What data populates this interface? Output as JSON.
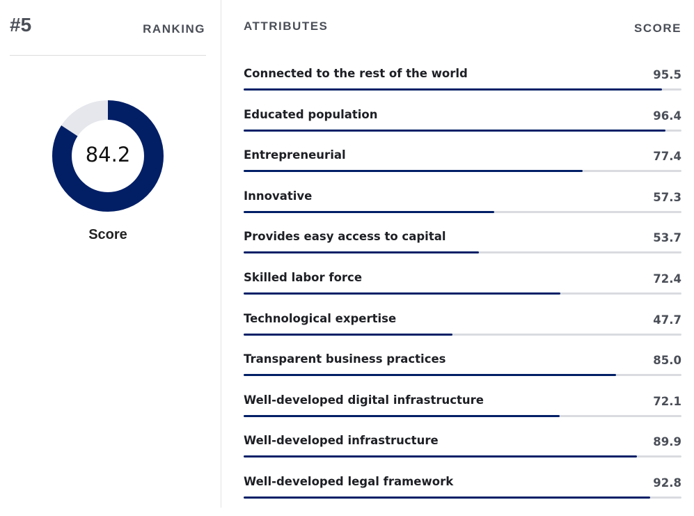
{
  "ranking": {
    "rank": "#5",
    "label": "RANKING"
  },
  "overall": {
    "score": 84.2,
    "score_text": "84.2",
    "label": "Score"
  },
  "colors": {
    "accent": "#021f66",
    "track": "#e5e7ec"
  },
  "attributes_header": "ATTRIBUTES",
  "score_header": "SCORE",
  "attributes": [
    {
      "label": "Connected to the rest of the world",
      "value": "95.5"
    },
    {
      "label": "Educated population",
      "value": "96.4"
    },
    {
      "label": "Entrepreneurial",
      "value": "77.4"
    },
    {
      "label": "Innovative",
      "value": "57.3"
    },
    {
      "label": "Provides easy access to capital",
      "value": "53.7"
    },
    {
      "label": "Skilled labor force",
      "value": "72.4"
    },
    {
      "label": "Technological expertise",
      "value": "47.7"
    },
    {
      "label": "Transparent business practices",
      "value": "85.0"
    },
    {
      "label": "Well-developed digital infrastructure",
      "value": "72.1"
    },
    {
      "label": "Well-developed infrastructure",
      "value": "89.9"
    },
    {
      "label": "Well-developed legal framework",
      "value": "92.8"
    }
  ]
}
